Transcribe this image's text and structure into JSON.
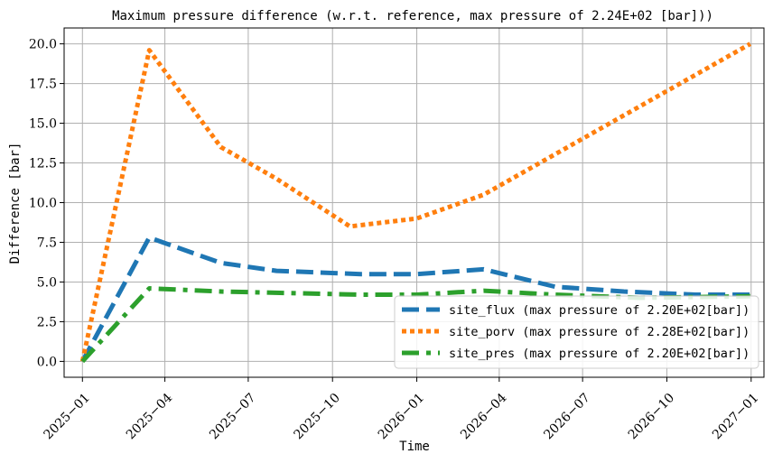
{
  "chart_data": {
    "type": "line",
    "title": "Maximum pressure difference (w.r.t.  reference, max pressure of 2.24E+02 [bar]))",
    "xlabel": "Time",
    "ylabel": "Difference [bar]",
    "xlim": [
      "2024-12-12",
      "2027-01-15"
    ],
    "ylim": [
      -1.0,
      21.0
    ],
    "grid": true,
    "legend_position": "lower-right",
    "x_ticks": [
      {
        "date": "2025-01-01",
        "label": "2025−01"
      },
      {
        "date": "2025-04-01",
        "label": "2025−04"
      },
      {
        "date": "2025-07-01",
        "label": "2025−07"
      },
      {
        "date": "2025-10-01",
        "label": "2025−10"
      },
      {
        "date": "2026-01-01",
        "label": "2026−01"
      },
      {
        "date": "2026-04-01",
        "label": "2026−04"
      },
      {
        "date": "2026-07-01",
        "label": "2026−07"
      },
      {
        "date": "2026-10-01",
        "label": "2026−10"
      },
      {
        "date": "2027-01-01",
        "label": "2027−01"
      }
    ],
    "y_ticks": [
      {
        "value": 0.0,
        "label": "0.0"
      },
      {
        "value": 2.5,
        "label": "2.5"
      },
      {
        "value": 5.0,
        "label": "5.0"
      },
      {
        "value": 7.5,
        "label": "7.5"
      },
      {
        "value": 10.0,
        "label": "10.0"
      },
      {
        "value": 12.5,
        "label": "12.5"
      },
      {
        "value": 15.0,
        "label": "15.0"
      },
      {
        "value": 17.5,
        "label": "17.5"
      },
      {
        "value": 20.0,
        "label": "20.0"
      }
    ],
    "series": [
      {
        "name": "site_flux (max pressure of 2.20E+02[bar])",
        "color": "#1f77b4",
        "style": "dashed",
        "points": [
          {
            "x": "2025-01-01",
            "y": 0.0
          },
          {
            "x": "2025-03-15",
            "y": 7.8
          },
          {
            "x": "2025-06-01",
            "y": 6.2
          },
          {
            "x": "2025-08-01",
            "y": 5.7
          },
          {
            "x": "2025-11-01",
            "y": 5.5
          },
          {
            "x": "2026-01-01",
            "y": 5.5
          },
          {
            "x": "2026-03-15",
            "y": 5.8
          },
          {
            "x": "2026-06-01",
            "y": 4.7
          },
          {
            "x": "2026-08-15",
            "y": 4.4
          },
          {
            "x": "2026-11-01",
            "y": 4.2
          },
          {
            "x": "2026-12-31",
            "y": 4.2
          }
        ]
      },
      {
        "name": "site_porv (max pressure of 2.28E+02[bar])",
        "color": "#ff7f0e",
        "style": "dotted",
        "points": [
          {
            "x": "2025-01-01",
            "y": 0.0
          },
          {
            "x": "2025-03-15",
            "y": 19.6
          },
          {
            "x": "2025-06-01",
            "y": 13.5
          },
          {
            "x": "2025-08-01",
            "y": 11.5
          },
          {
            "x": "2025-10-20",
            "y": 8.5
          },
          {
            "x": "2026-01-01",
            "y": 9.0
          },
          {
            "x": "2026-03-15",
            "y": 10.5
          },
          {
            "x": "2026-12-31",
            "y": 20.0
          }
        ]
      },
      {
        "name": "site_pres (max pressure of 2.20E+02[bar])",
        "color": "#2ca02c",
        "style": "dashdot",
        "points": [
          {
            "x": "2025-01-01",
            "y": 0.0
          },
          {
            "x": "2025-03-15",
            "y": 4.6
          },
          {
            "x": "2025-06-01",
            "y": 4.4
          },
          {
            "x": "2025-11-01",
            "y": 4.2
          },
          {
            "x": "2026-01-01",
            "y": 4.2
          },
          {
            "x": "2026-03-15",
            "y": 4.45
          },
          {
            "x": "2026-06-01",
            "y": 4.2
          },
          {
            "x": "2026-09-01",
            "y": 4.0
          },
          {
            "x": "2026-12-31",
            "y": 4.1
          }
        ]
      }
    ]
  }
}
